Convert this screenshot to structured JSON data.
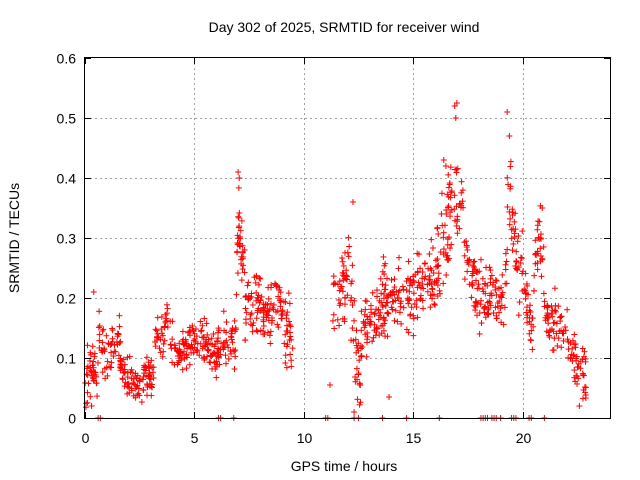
{
  "chart_data": {
    "type": "scatter",
    "title": "Day 302 of 2025, SRMTID for receiver wind",
    "xlabel": "GPS time / hours",
    "ylabel": "SRMTID / TECUs",
    "xlim": [
      0,
      24
    ],
    "ylim": [
      0,
      0.6
    ],
    "xticks": [
      0,
      5,
      10,
      15,
      20
    ],
    "xtick_labels": [
      "0",
      "5",
      "10",
      "15",
      "20"
    ],
    "yticks": [
      0,
      0.1,
      0.2,
      0.3,
      0.4,
      0.5,
      0.6
    ],
    "ytick_labels": [
      "0",
      "0.1",
      "0.2",
      "0.3",
      "0.4",
      "0.5",
      "0.6"
    ],
    "grid": true,
    "marker": "+",
    "color": "#ff0000",
    "series": [
      {
        "name": "SRMTID",
        "segments": [
          {
            "x0": 0.0,
            "x1": 0.6,
            "levels": [
              0.06,
              0.07,
              0.09,
              0.08,
              0.06
            ],
            "spread": 0.035,
            "n": 40
          },
          {
            "x0": 0.6,
            "x1": 1.0,
            "levels": [
              0.16,
              0.12,
              0.09
            ],
            "spread": 0.04,
            "n": 20
          },
          {
            "x0": 1.0,
            "x1": 1.6,
            "levels": [
              0.1,
              0.12,
              0.14
            ],
            "spread": 0.035,
            "n": 30
          },
          {
            "x0": 1.6,
            "x1": 2.6,
            "levels": [
              0.1,
              0.07,
              0.06,
              0.05,
              0.06
            ],
            "spread": 0.03,
            "n": 60
          },
          {
            "x0": 2.6,
            "x1": 3.2,
            "levels": [
              0.06,
              0.07,
              0.08
            ],
            "spread": 0.03,
            "n": 40
          },
          {
            "x0": 3.2,
            "x1": 4.0,
            "levels": [
              0.12,
              0.14,
              0.16,
              0.13
            ],
            "spread": 0.035,
            "n": 40
          },
          {
            "x0": 4.0,
            "x1": 5.0,
            "levels": [
              0.12,
              0.11,
              0.12,
              0.13
            ],
            "spread": 0.025,
            "n": 60
          },
          {
            "x0": 5.0,
            "x1": 6.0,
            "levels": [
              0.12,
              0.13,
              0.12,
              0.11
            ],
            "spread": 0.03,
            "n": 60
          },
          {
            "x0": 6.0,
            "x1": 6.9,
            "levels": [
              0.11,
              0.12,
              0.13,
              0.12
            ],
            "spread": 0.035,
            "n": 55
          },
          {
            "x0": 6.9,
            "x1": 7.3,
            "levels": [
              0.22,
              0.34,
              0.28,
              0.22
            ],
            "spread": 0.05,
            "n": 35
          },
          {
            "x0": 7.3,
            "x1": 8.5,
            "levels": [
              0.17,
              0.19,
              0.18,
              0.16
            ],
            "spread": 0.045,
            "n": 80
          },
          {
            "x0": 8.5,
            "x1": 9.5,
            "levels": [
              0.19,
              0.2,
              0.15,
              0.13
            ],
            "spread": 0.045,
            "n": 60
          },
          {
            "x0": 11.3,
            "x1": 12.0,
            "levels": [
              0.2,
              0.18,
              0.22,
              0.24
            ],
            "spread": 0.05,
            "n": 40
          },
          {
            "x0": 12.0,
            "x1": 12.6,
            "levels": [
              0.3,
              0.2,
              0.12,
              0.05
            ],
            "spread": 0.06,
            "n": 35
          },
          {
            "x0": 12.6,
            "x1": 13.5,
            "levels": [
              0.13,
              0.15,
              0.16,
              0.18
            ],
            "spread": 0.04,
            "n": 55
          },
          {
            "x0": 13.5,
            "x1": 15.0,
            "levels": [
              0.19,
              0.2,
              0.22,
              0.18,
              0.2
            ],
            "spread": 0.05,
            "n": 90
          },
          {
            "x0": 15.0,
            "x1": 16.0,
            "levels": [
              0.2,
              0.22,
              0.24,
              0.21
            ],
            "spread": 0.05,
            "n": 60
          },
          {
            "x0": 16.0,
            "x1": 17.3,
            "levels": [
              0.24,
              0.3,
              0.38,
              0.34
            ],
            "spread": 0.07,
            "n": 80
          },
          {
            "x0": 17.3,
            "x1": 18.5,
            "levels": [
              0.28,
              0.24,
              0.21,
              0.2
            ],
            "spread": 0.05,
            "n": 70
          },
          {
            "x0": 18.5,
            "x1": 19.3,
            "levels": [
              0.22,
              0.18,
              0.2,
              0.25
            ],
            "spread": 0.05,
            "n": 45
          },
          {
            "x0": 19.3,
            "x1": 19.9,
            "levels": [
              0.4,
              0.3,
              0.24
            ],
            "spread": 0.07,
            "n": 35
          },
          {
            "x0": 19.9,
            "x1": 20.5,
            "levels": [
              0.26,
              0.2,
              0.15
            ],
            "spread": 0.04,
            "n": 35
          },
          {
            "x0": 20.5,
            "x1": 21.0,
            "levels": [
              0.25,
              0.3,
              0.24
            ],
            "spread": 0.05,
            "n": 30
          },
          {
            "x0": 21.0,
            "x1": 22.0,
            "levels": [
              0.18,
              0.16,
              0.15,
              0.12
            ],
            "spread": 0.035,
            "n": 55
          },
          {
            "x0": 22.0,
            "x1": 22.9,
            "levels": [
              0.16,
              0.11,
              0.08,
              0.07
            ],
            "spread": 0.035,
            "n": 50
          }
        ],
        "points": [
          [
            0.4,
            0.21
          ],
          [
            0.3,
            0.02
          ],
          [
            7.0,
            0.41
          ],
          [
            7.05,
            0.4
          ],
          [
            12.25,
            0.36
          ],
          [
            12.3,
            0.01
          ],
          [
            11.2,
            0.055
          ],
          [
            13.9,
            0.035
          ],
          [
            16.9,
            0.52
          ],
          [
            17.0,
            0.525
          ],
          [
            16.95,
            0.5
          ],
          [
            19.3,
            0.51
          ],
          [
            19.4,
            0.47
          ],
          [
            16.4,
            0.43
          ],
          [
            16.5,
            0.42
          ],
          [
            20.9,
            0.35
          ],
          [
            22.6,
            0.02
          ]
        ],
        "baseline_x": [
          0.6,
          0.7,
          6.1,
          6.2,
          6.8,
          11.0,
          11.1,
          12.3,
          12.5,
          13.6,
          14.7,
          16.2,
          18.1,
          18.2,
          18.3,
          18.4,
          18.6,
          18.7,
          18.8,
          19.0,
          19.5,
          19.6,
          19.7,
          20.3,
          20.4,
          21.0
        ]
      }
    ]
  }
}
